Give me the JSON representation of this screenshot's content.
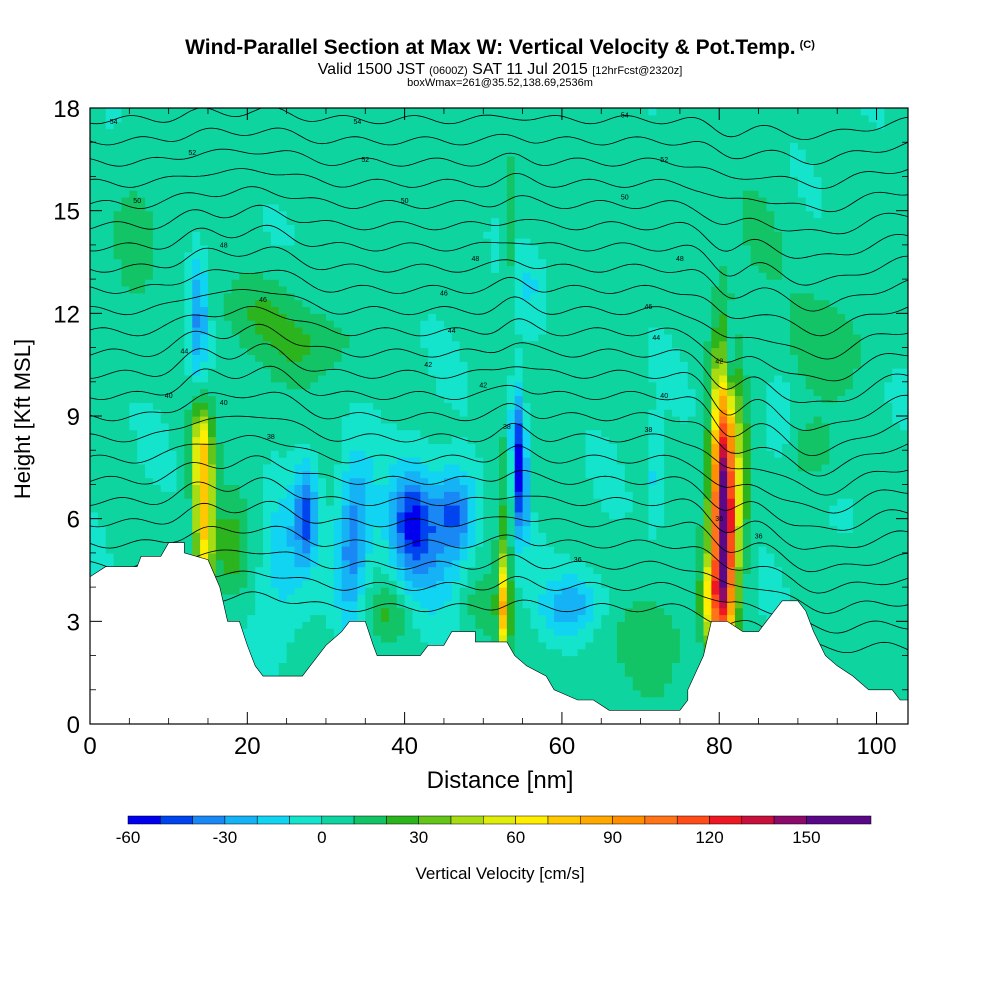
{
  "title": {
    "main": "Wind-Parallel Section at Max W: Vertical Velocity & Pot.Temp.",
    "copyright": "(C)",
    "line2_a": "Valid 1500 JST",
    "line2_b": "(0600Z)",
    "line2_c": "SAT 11 Jul 2015",
    "line2_d": "[12hrFcst@2320z]",
    "line3": "boxWmax=261@35.52,138.69,2536m"
  },
  "chart_data": {
    "type": "heatmap",
    "xlabel": "Distance [nm]",
    "ylabel": "Height [Kft MSL]",
    "xlim": [
      0,
      104
    ],
    "ylim": [
      0,
      18
    ],
    "xticks": [
      "0",
      "20",
      "40",
      "60",
      "80",
      "100"
    ],
    "yticks": [
      "0",
      "3",
      "6",
      "9",
      "12",
      "15",
      "18"
    ],
    "colorbar": {
      "label": "Vertical Velocity [cm/s]",
      "ticks": [
        "-60",
        "-30",
        "0",
        "30",
        "60",
        "90",
        "120",
        "150"
      ],
      "range": [
        -60,
        170
      ],
      "colors": [
        "#0000ee",
        "#0044f0",
        "#1a88f4",
        "#16b2f6",
        "#10d4f2",
        "#14e4cc",
        "#0ed4a0",
        "#12c466",
        "#2cb41e",
        "#64c41a",
        "#a8dc12",
        "#e0ec0a",
        "#ffee00",
        "#ffc800",
        "#ffa800",
        "#ff8e00",
        "#ff7418",
        "#ff4c18",
        "#ee1822",
        "#c8103c",
        "#8c0a6a",
        "#5a0888"
      ],
      "boundaries": [
        -60,
        -50,
        -40,
        -30,
        -20,
        -10,
        0,
        10,
        20,
        30,
        40,
        50,
        60,
        70,
        80,
        90,
        100,
        110,
        120,
        130,
        140,
        150,
        170
      ]
    },
    "terrain_kft": [
      [
        0,
        4.3
      ],
      [
        2,
        4.6
      ],
      [
        6,
        4.6
      ],
      [
        6.5,
        4.9
      ],
      [
        9,
        4.9
      ],
      [
        10,
        5.3
      ],
      [
        12,
        5.3
      ],
      [
        12,
        5.0
      ],
      [
        15,
        4.8
      ],
      [
        16.5,
        4.0
      ],
      [
        17.5,
        3.0
      ],
      [
        19,
        3.0
      ],
      [
        20,
        2.3
      ],
      [
        21,
        1.7
      ],
      [
        22,
        1.4
      ],
      [
        27,
        1.4
      ],
      [
        28,
        1.7
      ],
      [
        30,
        2.3
      ],
      [
        32,
        2.7
      ],
      [
        33,
        3.0
      ],
      [
        35,
        3.0
      ],
      [
        36,
        2.3
      ],
      [
        36.5,
        2.0
      ],
      [
        42,
        2.0
      ],
      [
        43,
        2.3
      ],
      [
        45,
        2.3
      ],
      [
        46,
        2.7
      ],
      [
        49,
        2.7
      ],
      [
        49,
        2.4
      ],
      [
        53,
        2.4
      ],
      [
        54,
        2.0
      ],
      [
        55.5,
        1.7
      ],
      [
        58,
        1.4
      ],
      [
        59,
        1.0
      ],
      [
        62,
        0.7
      ],
      [
        64,
        0.7
      ],
      [
        66,
        0.4
      ],
      [
        75,
        0.4
      ],
      [
        76,
        0.7
      ],
      [
        76,
        1.0
      ],
      [
        78,
        2.0
      ],
      [
        79,
        3.0
      ],
      [
        81,
        3.0
      ],
      [
        83,
        2.7
      ],
      [
        85,
        2.7
      ],
      [
        86,
        3.0
      ],
      [
        88,
        3.6
      ],
      [
        90,
        3.6
      ],
      [
        91,
        3.3
      ],
      [
        92,
        2.7
      ],
      [
        93.5,
        2.0
      ],
      [
        95,
        1.7
      ],
      [
        97,
        1.4
      ],
      [
        99,
        1.0
      ],
      [
        102,
        1.0
      ],
      [
        103,
        0.7
      ],
      [
        104,
        0.7
      ]
    ],
    "w_cells": [
      {
        "x": 14.5,
        "y": 6.0,
        "sx": 0.9,
        "sy": 1.7,
        "w": 70
      },
      {
        "x": 14.0,
        "y": 8.2,
        "sx": 1.0,
        "sy": 0.9,
        "w": 40
      },
      {
        "x": 13.8,
        "y": 11.8,
        "sx": 0.8,
        "sy": 1.3,
        "w": -35
      },
      {
        "x": 18.0,
        "y": 5.0,
        "sx": 1.5,
        "sy": 1.0,
        "w": 22
      },
      {
        "x": 22.0,
        "y": 12.0,
        "sx": 4.0,
        "sy": 0.9,
        "w": 18
      },
      {
        "x": 28.0,
        "y": 11.0,
        "sx": 3.5,
        "sy": 0.7,
        "w": 14
      },
      {
        "x": 27.5,
        "y": 6.2,
        "sx": 1.0,
        "sy": 1.0,
        "w": -42
      },
      {
        "x": 24.5,
        "y": 5.0,
        "sx": 2.0,
        "sy": 1.5,
        "w": -20
      },
      {
        "x": 33.0,
        "y": 4.8,
        "sx": 1.2,
        "sy": 1.6,
        "w": -30
      },
      {
        "x": 34.5,
        "y": 6.2,
        "sx": 1.4,
        "sy": 1.3,
        "w": -22
      },
      {
        "x": 41.0,
        "y": 6.0,
        "sx": 2.0,
        "sy": 1.1,
        "w": -48
      },
      {
        "x": 46.5,
        "y": 6.2,
        "sx": 1.8,
        "sy": 0.9,
        "w": -45
      },
      {
        "x": 43.0,
        "y": 4.5,
        "sx": 3.0,
        "sy": 1.3,
        "w": -20
      },
      {
        "x": 38.0,
        "y": 3.3,
        "sx": 1.8,
        "sy": 0.6,
        "w": 18
      },
      {
        "x": 50.0,
        "y": 3.4,
        "sx": 2.0,
        "sy": 0.7,
        "w": 16
      },
      {
        "x": 52.7,
        "y": 3.3,
        "sx": 0.45,
        "sy": 1.0,
        "w": 62
      },
      {
        "x": 52.6,
        "y": 5.2,
        "sx": 0.7,
        "sy": 2.0,
        "w": 22
      },
      {
        "x": 54.8,
        "y": 7.0,
        "sx": 0.65,
        "sy": 1.2,
        "w": -55
      },
      {
        "x": 54.2,
        "y": 8.8,
        "sx": 0.6,
        "sy": 1.0,
        "w": -35
      },
      {
        "x": 53.3,
        "y": 14.5,
        "sx": 0.5,
        "sy": 1.2,
        "w": 20
      },
      {
        "x": 56.0,
        "y": 12.8,
        "sx": 1.2,
        "sy": 0.8,
        "w": -12
      },
      {
        "x": 60.0,
        "y": 3.4,
        "sx": 2.0,
        "sy": 0.6,
        "w": -22
      },
      {
        "x": 63.0,
        "y": 3.6,
        "sx": 2.0,
        "sy": 0.6,
        "w": -18
      },
      {
        "x": 72.0,
        "y": 7.2,
        "sx": 0.5,
        "sy": 1.0,
        "w": -24
      },
      {
        "x": 72.5,
        "y": 2.3,
        "sx": 3.5,
        "sy": 1.2,
        "w": 12
      },
      {
        "x": 79.0,
        "y": 3.6,
        "sx": 1.0,
        "sy": 0.8,
        "w": 45
      },
      {
        "x": 80.6,
        "y": 6.0,
        "sx": 1.1,
        "sy": 3.0,
        "w": 165
      },
      {
        "x": 81.2,
        "y": 10.6,
        "sx": 0.5,
        "sy": 0.9,
        "w": -40
      },
      {
        "x": 83.0,
        "y": 7.0,
        "sx": 0.7,
        "sy": 1.8,
        "w": 20
      },
      {
        "x": 87.5,
        "y": 8.8,
        "sx": 1.3,
        "sy": 0.9,
        "w": -16
      },
      {
        "x": 94.0,
        "y": 11.0,
        "sx": 4.0,
        "sy": 1.0,
        "w": 12
      },
      {
        "x": 92.0,
        "y": 8.0,
        "sx": 2.5,
        "sy": 0.8,
        "w": 14
      },
      {
        "x": 6.0,
        "y": 15.0,
        "sx": 2.5,
        "sy": 1.5,
        "w": 10
      },
      {
        "x": 34.0,
        "y": 16.0,
        "sx": 3.0,
        "sy": 1.0,
        "w": 10
      },
      {
        "x": 62.0,
        "y": 15.5,
        "sx": 3.0,
        "sy": 1.2,
        "w": 10
      },
      {
        "x": 85.0,
        "y": 14.0,
        "sx": 3.0,
        "sy": 1.5,
        "w": 10
      }
    ],
    "theta_labels": [
      "54",
      "54",
      "54",
      "52",
      "52",
      "52",
      "50",
      "50",
      "50",
      "48",
      "48",
      "48",
      "46",
      "46",
      "46",
      "44",
      "44",
      "44",
      "42",
      "42",
      "42",
      "40",
      "40",
      "40",
      "38",
      "38",
      "38",
      "36",
      "36",
      "36"
    ]
  }
}
